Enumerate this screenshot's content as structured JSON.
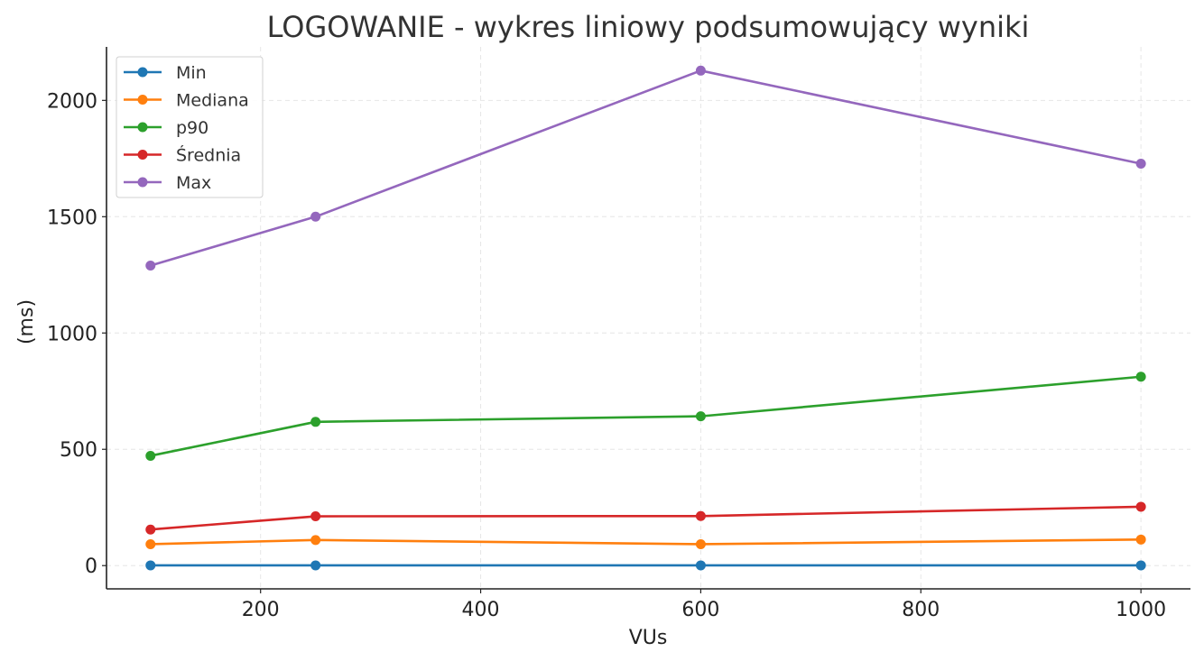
{
  "chart_data": {
    "type": "line",
    "title": "LOGOWANIE - wykres liniowy podsumowujący wyniki",
    "xlabel": "VUs",
    "ylabel": "(ms)",
    "x": [
      100,
      250,
      600,
      1000
    ],
    "xlim": [
      60,
      1045
    ],
    "ylim": [
      -100,
      2230
    ],
    "xticks": [
      200,
      400,
      600,
      800,
      1000
    ],
    "yticks": [
      0,
      500,
      1000,
      1500,
      2000
    ],
    "grid": true,
    "legend_position": "top-left",
    "series": [
      {
        "name": "Min",
        "color": "#1f77b4",
        "values": [
          1,
          1,
          1,
          1
        ]
      },
      {
        "name": "Mediana",
        "color": "#ff7f0e",
        "values": [
          92,
          110,
          92,
          112
        ]
      },
      {
        "name": "p90",
        "color": "#2ca02c",
        "values": [
          472,
          618,
          642,
          812
        ]
      },
      {
        "name": "Średnia",
        "color": "#d62728",
        "values": [
          155,
          212,
          213,
          253
        ]
      },
      {
        "name": "Max",
        "color": "#9467bd",
        "values": [
          1290,
          1500,
          2128,
          1728
        ]
      }
    ]
  }
}
